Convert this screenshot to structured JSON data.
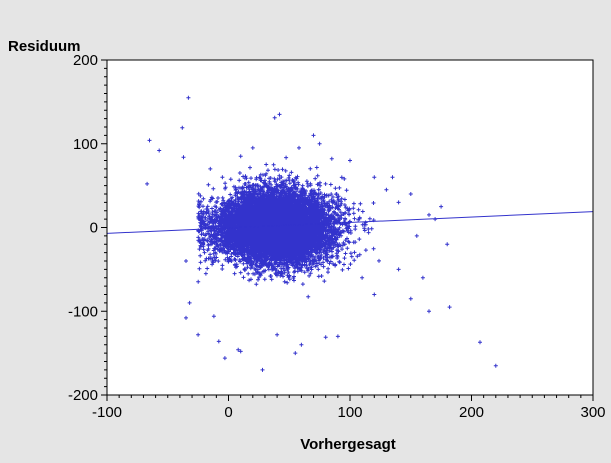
{
  "chart_data": {
    "type": "scatter",
    "title": "",
    "xlabel": "Vorhergesagt",
    "ylabel": "Residuum",
    "xlim": [
      -100,
      300
    ],
    "ylim": [
      -200,
      200
    ],
    "xticks": [
      -100,
      0,
      100,
      200,
      300
    ],
    "yticks": [
      -200,
      -100,
      0,
      100,
      200
    ],
    "grid": false,
    "legend": "none",
    "marker": "+",
    "colors": {
      "points": "#3333cc",
      "line": "#3333cc",
      "background": "#e5e5e5",
      "plot_area": "#ffffff"
    },
    "cluster": {
      "x_center": 38,
      "y_center": 0,
      "x_sd": 24,
      "y_sd": 22,
      "approx_count": 9000
    },
    "points": [
      [
        -65,
        104
      ],
      [
        -67,
        52
      ],
      [
        -57,
        92
      ],
      [
        -38,
        119
      ],
      [
        -33,
        155
      ],
      [
        -37,
        84
      ],
      [
        -35,
        -40
      ],
      [
        -32,
        -90
      ],
      [
        -35,
        -108
      ],
      [
        -25,
        -128
      ],
      [
        -12,
        -106
      ],
      [
        -8,
        -136
      ],
      [
        -3,
        -156
      ],
      [
        8,
        -146
      ],
      [
        10,
        -148
      ],
      [
        28,
        -170
      ],
      [
        42,
        135
      ],
      [
        38,
        131
      ],
      [
        58,
        95
      ],
      [
        85,
        82
      ],
      [
        100,
        80
      ],
      [
        120,
        60
      ],
      [
        135,
        60
      ],
      [
        150,
        40
      ],
      [
        175,
        25
      ],
      [
        180,
        -20
      ],
      [
        182,
        -95
      ],
      [
        165,
        -100
      ],
      [
        150,
        -85
      ],
      [
        90,
        -130
      ],
      [
        80,
        -131
      ],
      [
        60,
        -140
      ],
      [
        55,
        -150
      ],
      [
        207,
        -137
      ],
      [
        220,
        -165
      ],
      [
        40,
        -128
      ],
      [
        0,
        -40
      ],
      [
        5,
        -55
      ],
      [
        170,
        10
      ],
      [
        165,
        15
      ],
      [
        140,
        30
      ],
      [
        140,
        -50
      ],
      [
        120,
        -80
      ],
      [
        110,
        -60
      ],
      [
        -15,
        70
      ],
      [
        -5,
        60
      ],
      [
        10,
        85
      ],
      [
        20,
        95
      ],
      [
        70,
        110
      ],
      [
        75,
        100
      ],
      [
        130,
        45
      ],
      [
        155,
        -10
      ],
      [
        160,
        -60
      ]
    ],
    "regression": {
      "x": [
        -100,
        300
      ],
      "y": [
        -7,
        19
      ]
    }
  }
}
